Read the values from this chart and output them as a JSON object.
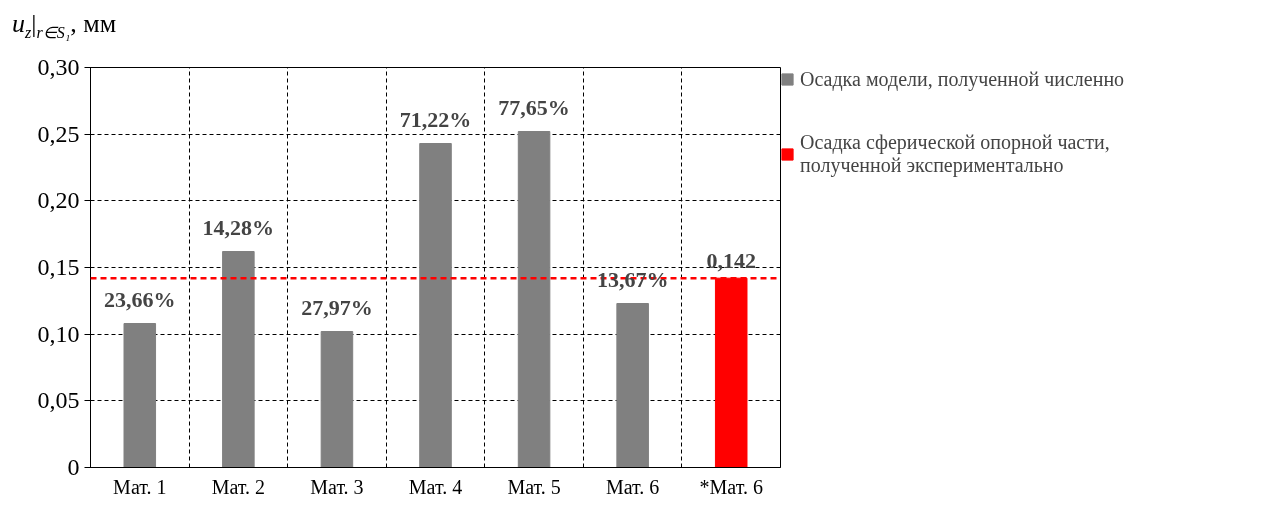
{
  "chart_data": {
    "type": "bar",
    "ylabel": "u$_{z}$|$_{r∈S₁}$, мм",
    "categories": [
      "Мат. 1",
      "Мат. 2",
      "Мат. 3",
      "Мат. 4",
      "Мат. 5",
      "Мат. 6",
      "*Мат. 6"
    ],
    "series": [
      {
        "name": "Осадка модели, полученной численно",
        "color": "#808080",
        "values": [
          0.108,
          0.162,
          0.102,
          0.243,
          0.252,
          0.123,
          null
        ]
      },
      {
        "name": "Осадка сферической опорной части,\nполученной экспериментально",
        "color": "#ff0000",
        "values": [
          null,
          null,
          null,
          null,
          null,
          null,
          0.142
        ],
        "value_labels": [
          null,
          null,
          null,
          null,
          null,
          null,
          "0,142"
        ]
      }
    ],
    "ylim": [
      0,
      0.3
    ],
    "yticks": [
      0,
      {
        "value": 0.05,
        "label": "0,05"
      },
      {
        "value": 0.1,
        "label": "0,10"
      },
      {
        "value": 0.15,
        "label": "0,15"
      },
      {
        "value": 0.2,
        "label": "0,20"
      },
      {
        "value": 0.25,
        "label": "0,25"
      },
      {
        "value": 0.3,
        "label": "0,30"
      }
    ],
    "ref_lines": [
      {
        "axis": "y",
        "value": 0.142,
        "color": "#ff0000",
        "line_style": "dashed"
      }
    ],
    "annotations": [
      {
        "text": "23,66%",
        "x": "Мат. 1",
        "y": 0.108
      },
      {
        "text": "14,28%",
        "x": "Мат. 2",
        "y": 0.162
      },
      {
        "text": "27,97%",
        "x": "Мат. 3",
        "y": 0.102
      },
      {
        "text": "71,22%",
        "x": "Мат. 4",
        "y": 0.243
      },
      {
        "text": "77,65%",
        "x": "Мат. 5",
        "y": 0.252
      },
      {
        "text": "13,67%",
        "x": "Мат. 6",
        "y": 0.123
      }
    ],
    "grid": true,
    "legend": "right"
  }
}
